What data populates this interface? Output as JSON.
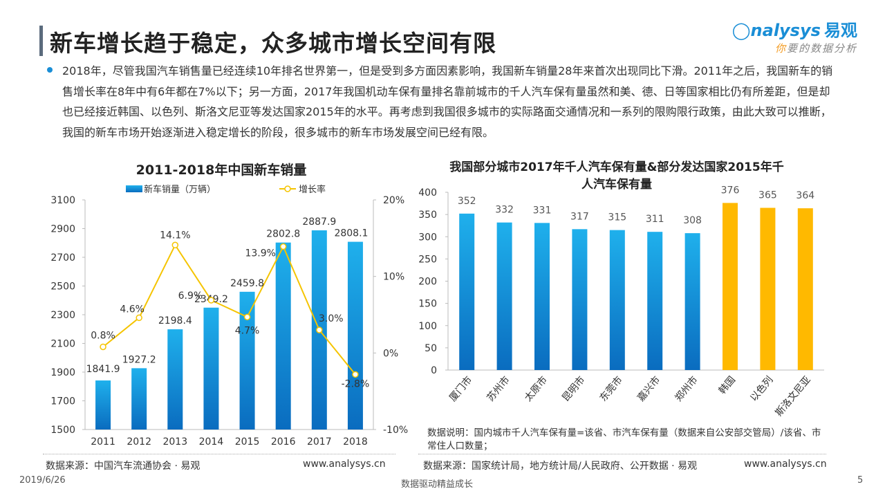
{
  "header": {
    "title": "新车增长趋于稳定，众多城市增长空间有限",
    "logo_en": "nalysys",
    "logo_cn": "易观",
    "logo_slogan_first": "你",
    "logo_slogan_rest": "要的数据分析"
  },
  "bullet": "2018年，尽管我国汽车销售量已经连续10年排名世界第一，但是受到多方面因素影响，我国新车销量28年来首次出现同比下滑。2011年之后，我国新车的销售增长率在8年中有6年都在7%以下；另一方面，2017年我国机动车保有量排名靠前城市的千人汽车保有量虽然和美、德、日等国家相比仍有所差距，但是却也已经接近韩国、以色列、斯洛文尼亚等发达国家2015年的水平。再考虑到我国很多城市的实际路面交通情况和一系列的限购限行政策，由此大致可以推断，我国的新车市场开始逐渐进入稳定增长的阶段，很多城市的新车市场发展空间已经有限。",
  "colors": {
    "accent": "#1a8ed6",
    "bar_top": "#1fb0ec",
    "bar_bottom": "#0a6cbf",
    "line": "#f5c400",
    "orange": "#ffb900"
  },
  "chart_data": [
    {
      "type": "bar+line",
      "title": "2011-2018年中国新车销量",
      "categories": [
        "2011",
        "2012",
        "2013",
        "2014",
        "2015",
        "2016",
        "2017",
        "2018"
      ],
      "series": [
        {
          "name": "新车销量（万辆）",
          "type": "bar",
          "axis": "left",
          "values": [
            1841.9,
            1927.2,
            2198.4,
            2349.2,
            2459.8,
            2802.8,
            2887.9,
            2808.1
          ],
          "labels": [
            "1841.9",
            "1927.2",
            "2198.4",
            "2349.2",
            "2459.8",
            "2802.8",
            "2887.9",
            "2808.1"
          ]
        },
        {
          "name": "增长率",
          "type": "line",
          "axis": "right",
          "values": [
            0.8,
            4.6,
            14.1,
            6.9,
            4.7,
            13.9,
            3.0,
            -2.8
          ],
          "labels": [
            "0.8%",
            "4.6%",
            "14.1%",
            "6.9%",
            "4.7%",
            "13.9%",
            "3.0%",
            "-2.8%"
          ]
        }
      ],
      "ylim": [
        1500,
        3100
      ],
      "yticks": [
        "1500",
        "1700",
        "1900",
        "2100",
        "2300",
        "2500",
        "2700",
        "2900",
        "3100"
      ],
      "y2lim": [
        -10,
        20
      ],
      "y2ticks": [
        "-10%",
        "0%",
        "10%",
        "20%"
      ],
      "legend": "top",
      "grid": false
    },
    {
      "type": "bar",
      "title": "我国部分城市2017年千人汽车保有量&部分发达国家2015年千人汽车保有量",
      "categories": [
        "厦门市",
        "苏州市",
        "太原市",
        "昆明市",
        "东莞市",
        "嘉兴市",
        "郑州市",
        "韩国",
        "以色列",
        "斯洛文尼亚"
      ],
      "values": [
        352,
        332,
        331,
        317,
        315,
        311,
        308,
        376,
        365,
        364
      ],
      "labels": [
        "352",
        "332",
        "331",
        "317",
        "315",
        "311",
        "308",
        "376",
        "365",
        "364"
      ],
      "groups": [
        "city",
        "city",
        "city",
        "city",
        "city",
        "city",
        "city",
        "country",
        "country",
        "country"
      ],
      "ylim": [
        0,
        400
      ],
      "yticks": [
        "0",
        "50",
        "100",
        "150",
        "200",
        "250",
        "300",
        "350",
        "400"
      ],
      "grid": false
    }
  ],
  "footer": {
    "left_source": "数据来源：中国汽车流通协会 · 易观",
    "left_url": "www.analysys.cn",
    "note": "数据说明：国内城市千人汽车保有量=该省、市汽车保有量（数据来自公安部交管局）/该省、市常住人口数量；",
    "right_source": "数据来源：国家统计局，地方统计局/人民政府、公开数据 · 易观",
    "right_url": "www.analysys.cn",
    "date": "2019/6/26",
    "slogan": "数据驱动精益成长",
    "page": "5"
  }
}
